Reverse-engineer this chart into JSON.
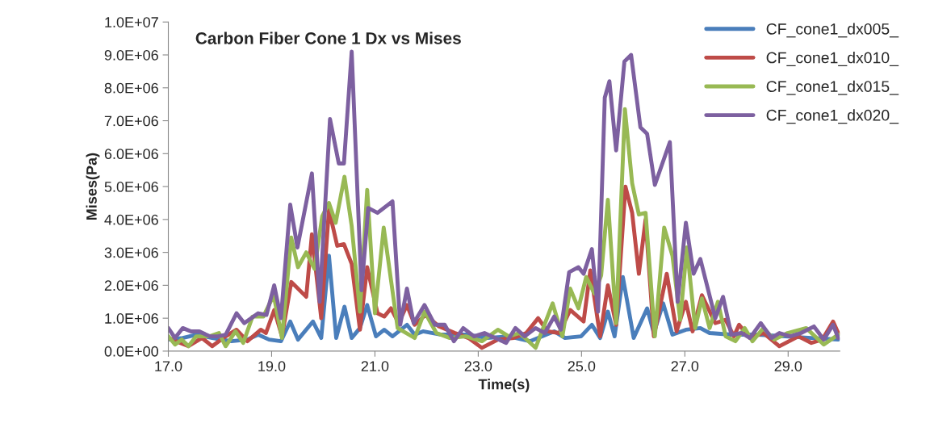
{
  "chart_data": {
    "type": "line",
    "title": "Carbon Fiber Cone 1 Dx vs Mises",
    "xlabel": "Time(s)",
    "ylabel": "Mises(Pa)",
    "xlim": [
      17,
      30
    ],
    "xticks": [
      {
        "value": 17,
        "label": "17.0"
      },
      {
        "value": 19,
        "label": "19.0"
      },
      {
        "value": 21,
        "label": "21.0"
      },
      {
        "value": 23,
        "label": "23.0"
      },
      {
        "value": 25,
        "label": "25.0"
      },
      {
        "value": 27,
        "label": "27.0"
      },
      {
        "value": 29,
        "label": "29.0"
      }
    ],
    "ylim": [
      0,
      10000000
    ],
    "yticks": [
      {
        "value": 0,
        "label": "0.0E+00"
      },
      {
        "value": 1000000,
        "label": "1.0E+06"
      },
      {
        "value": 2000000,
        "label": "2.0E+06"
      },
      {
        "value": 3000000,
        "label": "3.0E+06"
      },
      {
        "value": 4000000,
        "label": "4.0E+06"
      },
      {
        "value": 5000000,
        "label": "5.0E+06"
      },
      {
        "value": 6000000,
        "label": "6.0E+06"
      },
      {
        "value": 7000000,
        "label": "7.0E+06"
      },
      {
        "value": 8000000,
        "label": "8.0E+06"
      },
      {
        "value": 9000000,
        "label": "9.0E+06"
      },
      {
        "value": 10000000,
        "label": "1.0E+07"
      }
    ],
    "grid": false,
    "legend": "top right",
    "marker": "none",
    "line_style": "solid",
    "series": [
      {
        "name": "CF_cone1_dx005_",
        "color": "#4a7ebb",
        "x": [
          17.0,
          17.28,
          17.54,
          17.85,
          18.22,
          18.53,
          18.74,
          18.95,
          19.18,
          19.36,
          19.51,
          19.8,
          19.96,
          20.11,
          20.25,
          20.41,
          20.55,
          20.71,
          20.85,
          21.02,
          21.18,
          21.34,
          21.62,
          21.77,
          21.93,
          22.29,
          22.81,
          23.17,
          23.59,
          24.0,
          24.47,
          24.68,
          24.99,
          25.2,
          25.36,
          25.51,
          25.64,
          25.8,
          26.01,
          26.27,
          26.4,
          26.58,
          26.76,
          27.02,
          27.3,
          27.48,
          27.9,
          28.42,
          28.94,
          29.45,
          29.97
        ],
        "values": [
          350000,
          400000,
          500000,
          400000,
          300000,
          350000,
          500000,
          350000,
          300000,
          900000,
          350000,
          900000,
          400000,
          2900000,
          400000,
          1350000,
          400000,
          700000,
          1400000,
          450000,
          650000,
          450000,
          800000,
          500000,
          600000,
          500000,
          500000,
          400000,
          450000,
          300000,
          600000,
          400000,
          450000,
          800000,
          400000,
          1200000,
          450000,
          2250000,
          400000,
          1300000,
          550000,
          1450000,
          500000,
          650000,
          700000,
          550000,
          500000,
          500000,
          450000,
          400000,
          350000
        ]
      },
      {
        "name": "CF_cone1_dx010_",
        "color": "#be4b48",
        "x": [
          17.0,
          17.23,
          17.39,
          17.65,
          17.85,
          18.11,
          18.32,
          18.53,
          18.79,
          18.89,
          19.05,
          19.2,
          19.38,
          19.67,
          19.78,
          19.96,
          20.11,
          20.27,
          20.4,
          20.55,
          20.71,
          20.85,
          21.05,
          21.18,
          21.31,
          21.46,
          21.62,
          21.77,
          21.98,
          22.24,
          22.55,
          22.81,
          23.07,
          23.38,
          23.69,
          23.93,
          24.16,
          24.34,
          24.57,
          24.78,
          25.04,
          25.17,
          25.36,
          25.51,
          25.67,
          25.85,
          25.98,
          26.11,
          26.24,
          26.4,
          26.65,
          26.84,
          27.02,
          27.15,
          27.33,
          27.59,
          27.79,
          27.95,
          28.05,
          28.26,
          28.52,
          28.83,
          29.2,
          29.45,
          29.66,
          29.87,
          29.97
        ],
        "values": [
          400000,
          250000,
          150000,
          400000,
          150000,
          450000,
          650000,
          300000,
          650000,
          550000,
          1250000,
          450000,
          2100000,
          1650000,
          3550000,
          1000000,
          4300000,
          3200000,
          3250000,
          2650000,
          650000,
          2550000,
          1150000,
          1050000,
          1300000,
          850000,
          1400000,
          800000,
          1100000,
          750000,
          550000,
          400000,
          100000,
          350000,
          400000,
          550000,
          1000000,
          600000,
          550000,
          1250000,
          900000,
          2450000,
          450000,
          2000000,
          800000,
          5000000,
          4200000,
          2350000,
          4000000,
          450000,
          2350000,
          600000,
          1500000,
          600000,
          1700000,
          850000,
          950000,
          450000,
          800000,
          400000,
          550000,
          150000,
          450000,
          250000,
          350000,
          900000,
          550000
        ]
      },
      {
        "name": "CF_cone1_dx015_",
        "color": "#98b954",
        "x": [
          17.0,
          17.13,
          17.26,
          17.39,
          17.54,
          17.8,
          17.98,
          18.11,
          18.3,
          18.45,
          18.63,
          18.84,
          19.04,
          19.2,
          19.38,
          19.51,
          19.67,
          19.83,
          19.98,
          20.11,
          20.24,
          20.41,
          20.55,
          20.71,
          20.85,
          21.0,
          21.17,
          21.44,
          21.77,
          21.96,
          22.19,
          22.45,
          22.76,
          23.07,
          23.38,
          23.59,
          23.8,
          24.11,
          24.44,
          24.63,
          24.78,
          24.94,
          25.09,
          25.25,
          25.38,
          25.51,
          25.67,
          25.84,
          25.98,
          26.11,
          26.24,
          26.42,
          26.6,
          26.76,
          26.91,
          27.04,
          27.2,
          27.33,
          27.48,
          27.64,
          27.79,
          27.98,
          28.16,
          28.31,
          28.52,
          28.73,
          28.99,
          29.35,
          29.69,
          29.97
        ],
        "values": [
          450000,
          200000,
          350000,
          150000,
          450000,
          450000,
          550000,
          150000,
          600000,
          250000,
          1050000,
          1050000,
          1700000,
          400000,
          3450000,
          2550000,
          3000000,
          2500000,
          4100000,
          4500000,
          3900000,
          5300000,
          3800000,
          1200000,
          4900000,
          1150000,
          3750000,
          700000,
          400000,
          1200000,
          550000,
          400000,
          450000,
          300000,
          650000,
          450000,
          550000,
          100000,
          1450000,
          450000,
          1900000,
          1300000,
          2250000,
          1750000,
          2300000,
          4600000,
          850000,
          7350000,
          5100000,
          4150000,
          4200000,
          450000,
          3750000,
          2900000,
          950000,
          3150000,
          700000,
          1600000,
          700000,
          1500000,
          450000,
          300000,
          700000,
          300000,
          700000,
          350000,
          550000,
          700000,
          200000,
          500000
        ]
      },
      {
        "name": "CF_cone1_dx020_",
        "color": "#7d60a0",
        "x": [
          17.0,
          17.13,
          17.28,
          17.44,
          17.6,
          17.8,
          17.96,
          18.11,
          18.32,
          18.47,
          18.74,
          18.9,
          19.05,
          19.18,
          19.36,
          19.5,
          19.78,
          19.93,
          20.13,
          20.3,
          20.4,
          20.55,
          20.74,
          20.87,
          21.05,
          21.34,
          21.49,
          21.62,
          21.75,
          21.96,
          22.16,
          22.35,
          22.53,
          22.71,
          22.92,
          23.12,
          23.33,
          23.54,
          23.72,
          23.9,
          24.11,
          24.29,
          24.47,
          24.6,
          24.76,
          24.94,
          25.04,
          25.2,
          25.32,
          25.45,
          25.54,
          25.67,
          25.83,
          25.96,
          26.14,
          26.27,
          26.42,
          26.71,
          26.86,
          27.02,
          27.17,
          27.3,
          27.59,
          27.74,
          27.9,
          28.1,
          28.26,
          28.47,
          28.68,
          28.83,
          29.04,
          29.25,
          29.5,
          29.69,
          29.87,
          29.97
        ],
        "values": [
          700000,
          400000,
          700000,
          600000,
          600000,
          450000,
          450000,
          500000,
          1150000,
          850000,
          1150000,
          1100000,
          2000000,
          1000000,
          4450000,
          3150000,
          5400000,
          1500000,
          7050000,
          5700000,
          5700000,
          9100000,
          1850000,
          4350000,
          4200000,
          4550000,
          800000,
          1900000,
          850000,
          1400000,
          800000,
          800000,
          300000,
          700000,
          450000,
          550000,
          400000,
          250000,
          700000,
          450000,
          700000,
          550000,
          1050000,
          650000,
          2400000,
          2550000,
          2350000,
          3100000,
          1200000,
          7700000,
          8200000,
          6100000,
          8800000,
          9000000,
          6800000,
          6600000,
          5050000,
          6350000,
          1500000,
          3900000,
          2350000,
          2800000,
          1000000,
          1650000,
          500000,
          550000,
          400000,
          850000,
          400000,
          550000,
          450000,
          550000,
          750000,
          350000,
          800000,
          400000
        ]
      }
    ]
  }
}
